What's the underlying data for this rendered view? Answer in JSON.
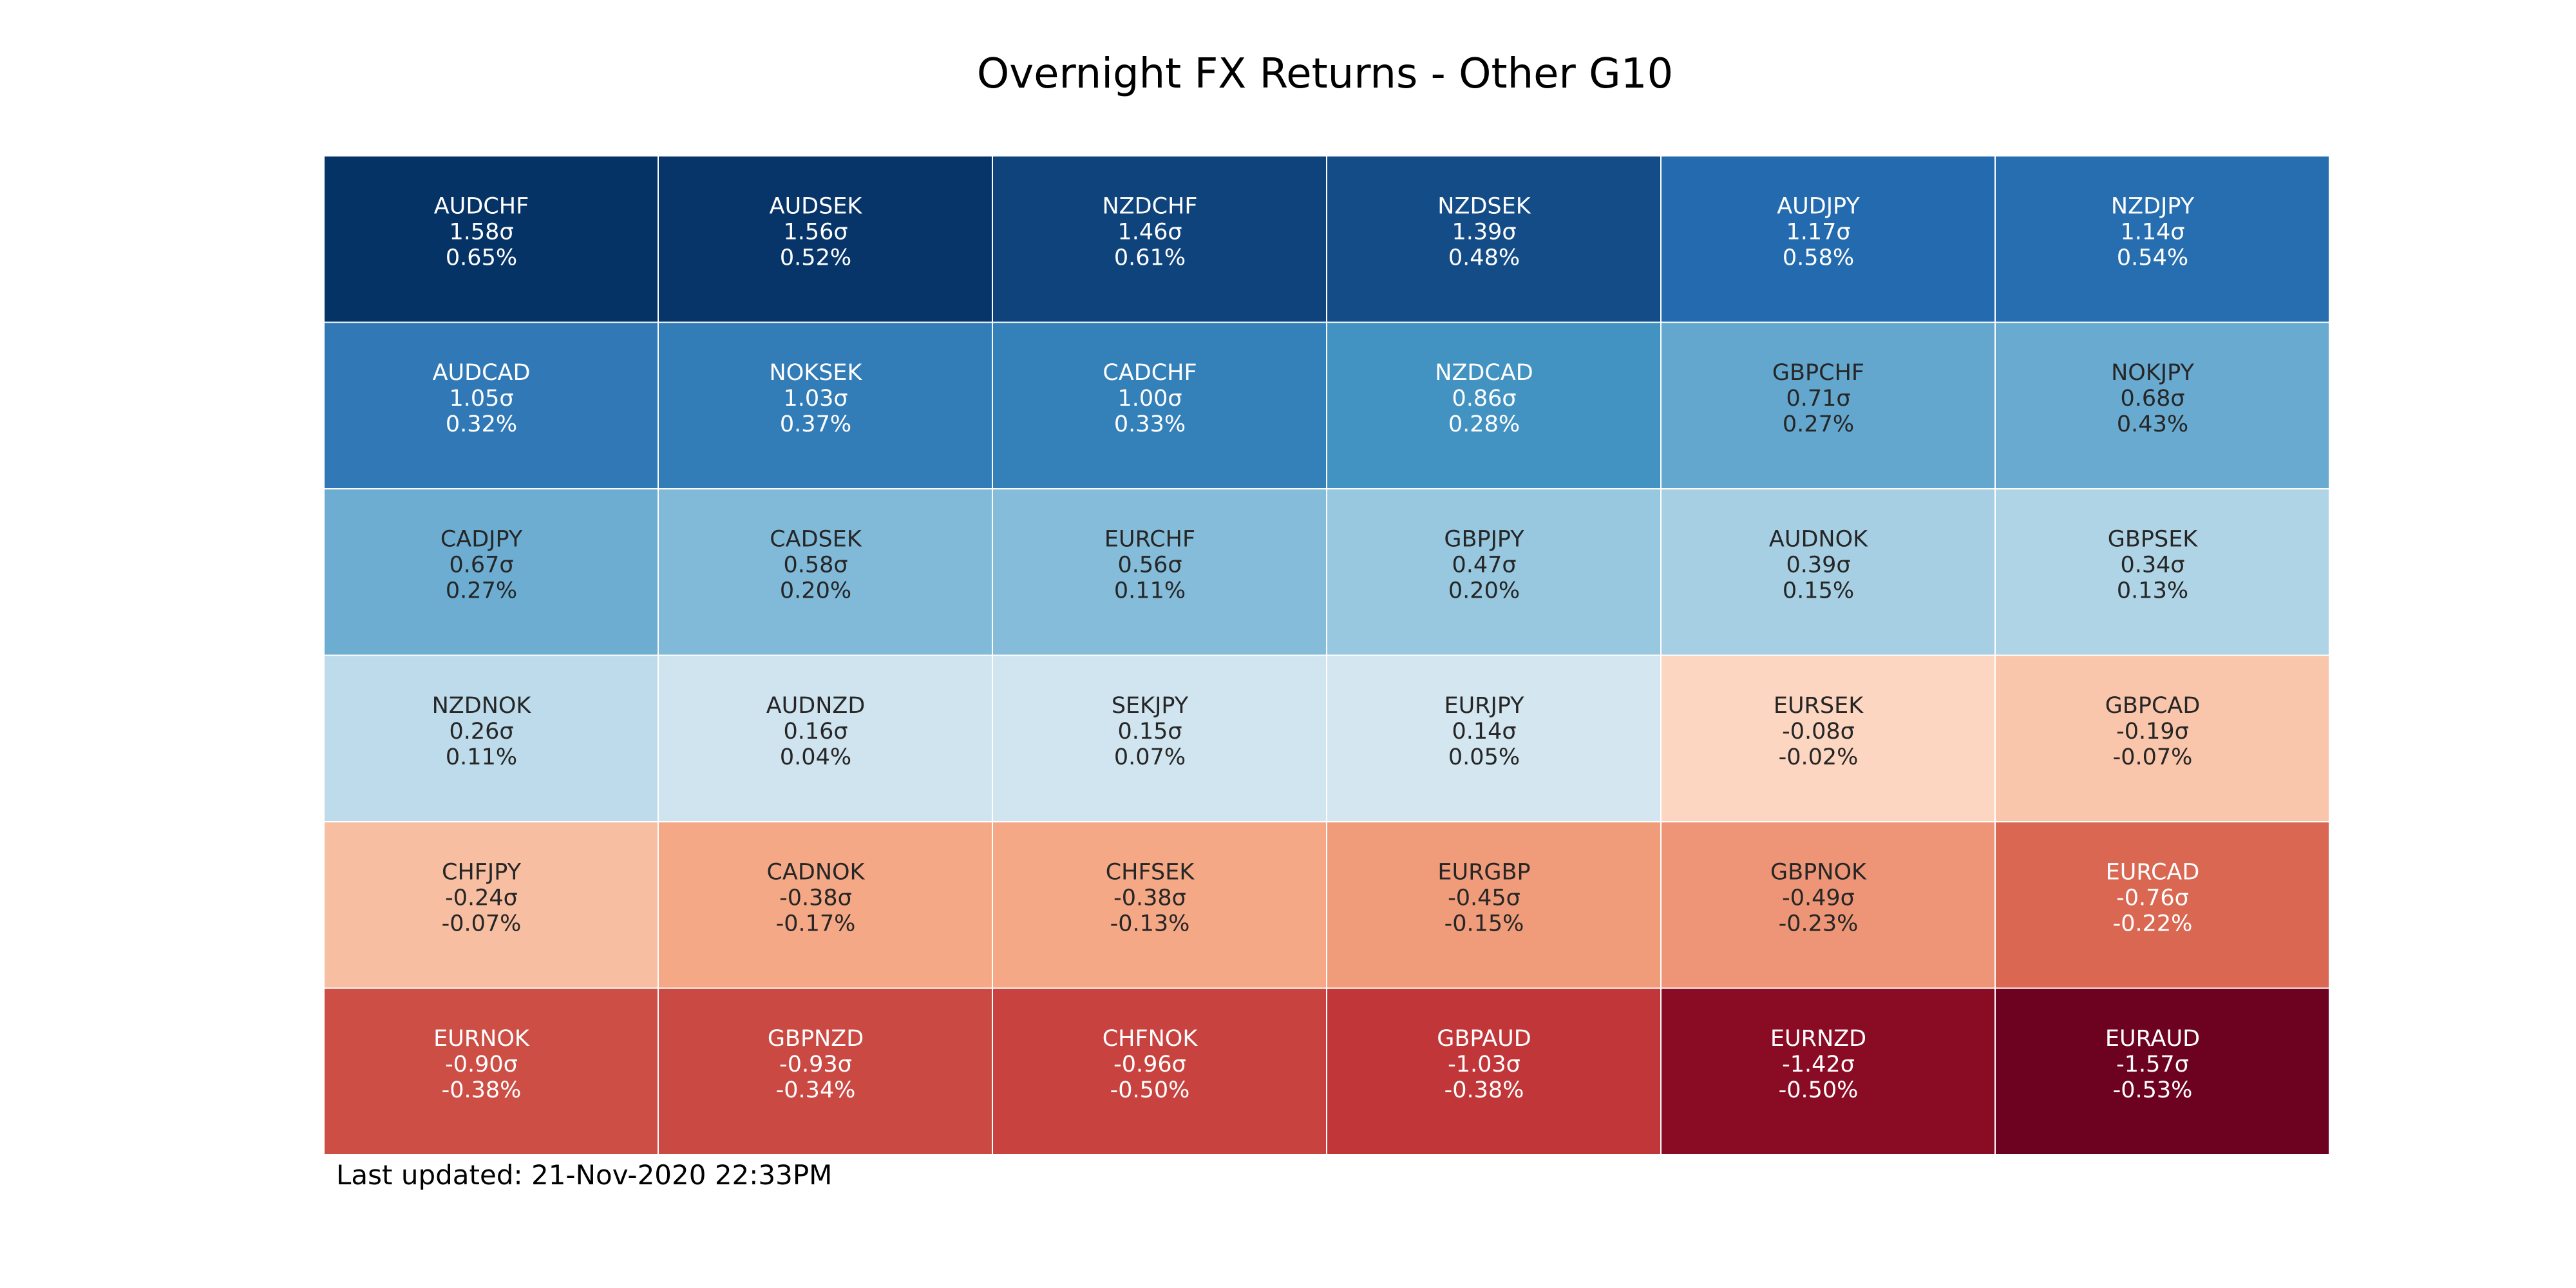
{
  "chart_data": {
    "type": "heatmap",
    "title": "Overnight FX Returns - Other G10",
    "footer": "Last updated: 21-Nov-2020 22:33PM",
    "columns": 6,
    "cells": [
      {
        "pair": "AUDCHF",
        "sigma": "1.58σ",
        "ret": "0.65%",
        "value": 1.58
      },
      {
        "pair": "AUDSEK",
        "sigma": "1.56σ",
        "ret": "0.52%",
        "value": 1.56
      },
      {
        "pair": "NZDCHF",
        "sigma": "1.46σ",
        "ret": "0.61%",
        "value": 1.46
      },
      {
        "pair": "NZDSEK",
        "sigma": "1.39σ",
        "ret": "0.48%",
        "value": 1.39
      },
      {
        "pair": "AUDJPY",
        "sigma": "1.17σ",
        "ret": "0.58%",
        "value": 1.17
      },
      {
        "pair": "NZDJPY",
        "sigma": "1.14σ",
        "ret": "0.54%",
        "value": 1.14
      },
      {
        "pair": "AUDCAD",
        "sigma": "1.05σ",
        "ret": "0.32%",
        "value": 1.05
      },
      {
        "pair": "NOKSEK",
        "sigma": "1.03σ",
        "ret": "0.37%",
        "value": 1.03
      },
      {
        "pair": "CADCHF",
        "sigma": "1.00σ",
        "ret": "0.33%",
        "value": 1.0
      },
      {
        "pair": "NZDCAD",
        "sigma": "0.86σ",
        "ret": "0.28%",
        "value": 0.86
      },
      {
        "pair": "GBPCHF",
        "sigma": "0.71σ",
        "ret": "0.27%",
        "value": 0.71
      },
      {
        "pair": "NOKJPY",
        "sigma": "0.68σ",
        "ret": "0.43%",
        "value": 0.68
      },
      {
        "pair": "CADJPY",
        "sigma": "0.67σ",
        "ret": "0.27%",
        "value": 0.67
      },
      {
        "pair": "CADSEK",
        "sigma": "0.58σ",
        "ret": "0.20%",
        "value": 0.58
      },
      {
        "pair": "EURCHF",
        "sigma": "0.56σ",
        "ret": "0.11%",
        "value": 0.56
      },
      {
        "pair": "GBPJPY",
        "sigma": "0.47σ",
        "ret": "0.20%",
        "value": 0.47
      },
      {
        "pair": "AUDNOK",
        "sigma": "0.39σ",
        "ret": "0.15%",
        "value": 0.39
      },
      {
        "pair": "GBPSEK",
        "sigma": "0.34σ",
        "ret": "0.13%",
        "value": 0.34
      },
      {
        "pair": "NZDNOK",
        "sigma": "0.26σ",
        "ret": "0.11%",
        "value": 0.26
      },
      {
        "pair": "AUDNZD",
        "sigma": "0.16σ",
        "ret": "0.04%",
        "value": 0.16
      },
      {
        "pair": "SEKJPY",
        "sigma": "0.15σ",
        "ret": "0.07%",
        "value": 0.15
      },
      {
        "pair": "EURJPY",
        "sigma": "0.14σ",
        "ret": "0.05%",
        "value": 0.14
      },
      {
        "pair": "EURSEK",
        "sigma": "-0.08σ",
        "ret": "-0.02%",
        "value": -0.08
      },
      {
        "pair": "GBPCAD",
        "sigma": "-0.19σ",
        "ret": "-0.07%",
        "value": -0.19
      },
      {
        "pair": "CHFJPY",
        "sigma": "-0.24σ",
        "ret": "-0.07%",
        "value": -0.24
      },
      {
        "pair": "CADNOK",
        "sigma": "-0.38σ",
        "ret": "-0.17%",
        "value": -0.38
      },
      {
        "pair": "CHFSEK",
        "sigma": "-0.38σ",
        "ret": "-0.13%",
        "value": -0.38
      },
      {
        "pair": "EURGBP",
        "sigma": "-0.45σ",
        "ret": "-0.15%",
        "value": -0.45
      },
      {
        "pair": "GBPNOK",
        "sigma": "-0.49σ",
        "ret": "-0.23%",
        "value": -0.49
      },
      {
        "pair": "EURCAD",
        "sigma": "-0.76σ",
        "ret": "-0.22%",
        "value": -0.76
      },
      {
        "pair": "EURNOK",
        "sigma": "-0.90σ",
        "ret": "-0.38%",
        "value": -0.9
      },
      {
        "pair": "GBPNZD",
        "sigma": "-0.93σ",
        "ret": "-0.34%",
        "value": -0.93
      },
      {
        "pair": "CHFNOK",
        "sigma": "-0.96σ",
        "ret": "-0.50%",
        "value": -0.96
      },
      {
        "pair": "GBPAUD",
        "sigma": "-1.03σ",
        "ret": "-0.38%",
        "value": -1.03
      },
      {
        "pair": "EURNZD",
        "sigma": "-1.42σ",
        "ret": "-0.50%",
        "value": -1.42
      },
      {
        "pair": "EURAUD",
        "sigma": "-1.57σ",
        "ret": "-0.53%",
        "value": -1.57
      }
    ],
    "colormap": "RdBu",
    "colors": {
      "positive_max": "#08306b",
      "neutral": "#f7f7f7",
      "negative_max": "#67001f",
      "grid_line": "#ffffff"
    }
  }
}
